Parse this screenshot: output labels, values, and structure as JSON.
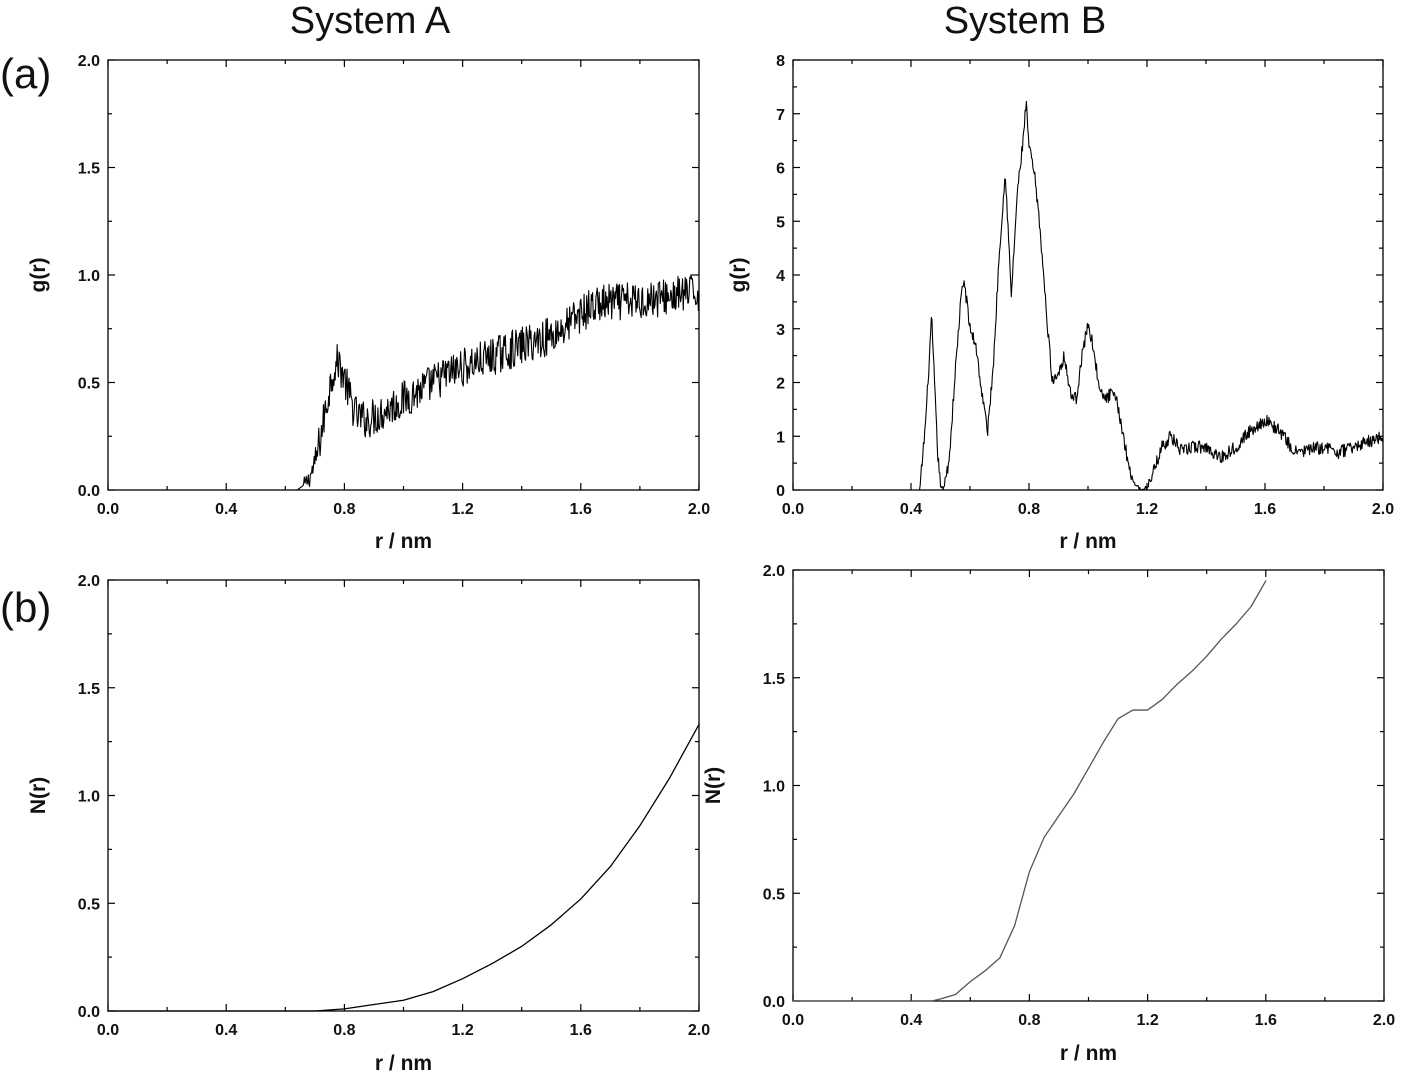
{
  "figure": {
    "column_titles": [
      "System A",
      "System B"
    ],
    "row_labels": [
      "(a)",
      "(b)"
    ]
  },
  "chart_data": [
    {
      "id": "a-left",
      "type": "line",
      "xlabel": "r / nm",
      "ylabel": "g(r)",
      "xlim": [
        0.0,
        2.0
      ],
      "ylim": [
        0.0,
        2.0
      ],
      "xticks": [
        "0.0",
        "0.4",
        "0.8",
        "1.2",
        "1.6",
        "2.0"
      ],
      "yticks": [
        "0.0",
        "0.5",
        "1.0",
        "1.5",
        "2.0"
      ],
      "noisy": true,
      "color": "#000000",
      "series": [
        {
          "x": [
            0.0,
            0.64,
            0.66,
            0.68,
            0.7,
            0.72,
            0.74,
            0.76,
            0.78,
            0.8,
            0.82,
            0.84,
            0.86,
            0.88,
            0.9,
            0.95,
            1.0,
            1.05,
            1.1,
            1.15,
            1.2,
            1.3,
            1.4,
            1.5,
            1.55,
            1.6,
            1.65,
            1.7,
            1.8,
            1.9,
            2.0
          ],
          "y": [
            0.0,
            0.0,
            0.02,
            0.05,
            0.12,
            0.25,
            0.4,
            0.55,
            0.6,
            0.52,
            0.42,
            0.35,
            0.33,
            0.33,
            0.34,
            0.38,
            0.42,
            0.46,
            0.5,
            0.54,
            0.57,
            0.62,
            0.67,
            0.72,
            0.76,
            0.82,
            0.86,
            0.87,
            0.88,
            0.9,
            0.92
          ]
        }
      ]
    },
    {
      "id": "a-right",
      "type": "line",
      "xlabel": "r / nm",
      "ylabel": "g(r)",
      "xlim": [
        0.0,
        2.0
      ],
      "ylim": [
        0,
        8
      ],
      "xticks": [
        "0.0",
        "0.4",
        "0.8",
        "1.2",
        "1.6",
        "2.0"
      ],
      "yticks": [
        "0",
        "1",
        "2",
        "3",
        "4",
        "5",
        "6",
        "7",
        "8"
      ],
      "noisy": true,
      "color": "#000000",
      "series": [
        {
          "x": [
            0.0,
            0.43,
            0.45,
            0.47,
            0.49,
            0.5,
            0.51,
            0.53,
            0.55,
            0.57,
            0.58,
            0.6,
            0.62,
            0.64,
            0.66,
            0.68,
            0.7,
            0.72,
            0.74,
            0.76,
            0.78,
            0.79,
            0.8,
            0.82,
            0.84,
            0.86,
            0.88,
            0.9,
            0.92,
            0.94,
            0.96,
            0.98,
            1.0,
            1.02,
            1.04,
            1.06,
            1.08,
            1.1,
            1.12,
            1.14,
            1.16,
            1.18,
            1.2,
            1.22,
            1.25,
            1.28,
            1.32,
            1.35,
            1.4,
            1.45,
            1.5,
            1.55,
            1.6,
            1.65,
            1.7,
            1.75,
            1.8,
            1.85,
            1.9,
            1.95,
            2.0
          ],
          "y": [
            0.0,
            0.0,
            1.3,
            3.2,
            0.7,
            0.1,
            0.0,
            0.6,
            2.2,
            3.6,
            3.9,
            3.0,
            2.7,
            1.8,
            1.1,
            2.4,
            4.5,
            5.9,
            3.6,
            5.5,
            6.5,
            7.2,
            6.4,
            5.8,
            4.7,
            3.2,
            2.0,
            2.2,
            2.5,
            1.8,
            1.7,
            2.5,
            3.1,
            2.6,
            1.8,
            1.7,
            1.8,
            1.6,
            1.0,
            0.4,
            0.1,
            0.0,
            0.05,
            0.3,
            0.8,
            1.0,
            0.7,
            0.8,
            0.8,
            0.6,
            0.8,
            1.1,
            1.3,
            1.1,
            0.7,
            0.75,
            0.8,
            0.7,
            0.8,
            0.9,
            1.0
          ]
        }
      ]
    },
    {
      "id": "b-left",
      "type": "line",
      "xlabel": "r / nm",
      "ylabel": "N(r)",
      "xlim": [
        0.0,
        2.0
      ],
      "ylim": [
        0.0,
        2.0
      ],
      "xticks": [
        "0.0",
        "0.4",
        "0.8",
        "1.2",
        "1.6",
        "2.0"
      ],
      "yticks": [
        "0.0",
        "0.5",
        "1.0",
        "1.5",
        "2.0"
      ],
      "noisy": false,
      "color": "#000000",
      "series": [
        {
          "x": [
            0.0,
            0.7,
            0.8,
            0.9,
            1.0,
            1.1,
            1.2,
            1.3,
            1.4,
            1.5,
            1.6,
            1.7,
            1.8,
            1.9,
            2.0
          ],
          "y": [
            0.0,
            0.0,
            0.01,
            0.03,
            0.05,
            0.09,
            0.15,
            0.22,
            0.3,
            0.4,
            0.52,
            0.67,
            0.86,
            1.08,
            1.33
          ]
        }
      ]
    },
    {
      "id": "b-right",
      "type": "line",
      "xlabel": "r / nm",
      "ylabel": "N(r)",
      "xlim": [
        0.0,
        2.0
      ],
      "ylim": [
        0.0,
        2.0
      ],
      "xticks": [
        "0.0",
        "0.4",
        "0.8",
        "1.2",
        "1.6",
        "2.0"
      ],
      "yticks": [
        "0.0",
        "0.5",
        "1.0",
        "1.5",
        "2.0"
      ],
      "noisy": false,
      "color": "#555555",
      "series": [
        {
          "x": [
            0.0,
            0.47,
            0.5,
            0.55,
            0.6,
            0.65,
            0.7,
            0.75,
            0.8,
            0.85,
            0.9,
            0.95,
            1.0,
            1.05,
            1.1,
            1.15,
            1.2,
            1.25,
            1.3,
            1.35,
            1.4,
            1.45,
            1.5,
            1.55,
            1.6
          ],
          "y": [
            0.0,
            0.0,
            0.01,
            0.03,
            0.09,
            0.14,
            0.2,
            0.35,
            0.6,
            0.76,
            0.86,
            0.96,
            1.08,
            1.2,
            1.31,
            1.35,
            1.35,
            1.4,
            1.47,
            1.53,
            1.6,
            1.68,
            1.75,
            1.83,
            1.95
          ]
        }
      ]
    }
  ]
}
